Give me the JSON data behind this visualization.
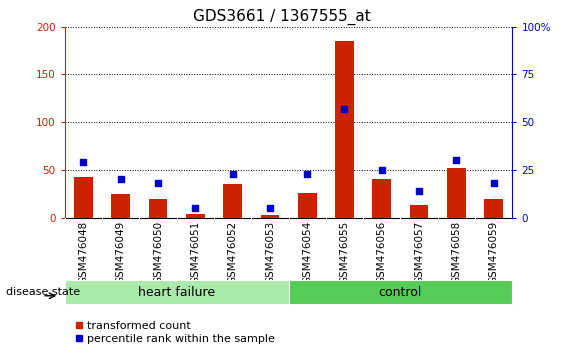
{
  "title": "GDS3661 / 1367555_at",
  "categories": [
    "GSM476048",
    "GSM476049",
    "GSM476050",
    "GSM476051",
    "GSM476052",
    "GSM476053",
    "GSM476054",
    "GSM476055",
    "GSM476056",
    "GSM476057",
    "GSM476058",
    "GSM476059"
  ],
  "transformed_count": [
    43,
    25,
    20,
    4,
    35,
    3,
    26,
    185,
    40,
    13,
    52,
    20
  ],
  "percentile_rank": [
    29,
    20,
    18,
    5,
    23,
    5,
    23,
    57,
    25,
    14,
    30,
    18
  ],
  "ylim_left": [
    0,
    200
  ],
  "ylim_right": [
    0,
    100
  ],
  "yticks_left": [
    0,
    50,
    100,
    150,
    200
  ],
  "yticks_right": [
    0,
    25,
    50,
    75,
    100
  ],
  "ytick_right_labels": [
    "0",
    "25",
    "50",
    "75",
    "100%"
  ],
  "bar_color": "#cc2200",
  "dot_color": "#0000cc",
  "hf_count": 6,
  "ctrl_count": 6,
  "heart_failure_color": "#aaeaaa",
  "control_color": "#55cc55",
  "group_label_heart_failure": "heart failure",
  "group_label_control": "control",
  "disease_state_label": "disease state",
  "legend_red_label": "transformed count",
  "legend_blue_label": "percentile rank within the sample",
  "tick_area_color": "#c8c8c8",
  "left_axis_color": "#cc2200",
  "right_axis_color": "#0000cc",
  "title_fontsize": 11,
  "tick_fontsize": 7.5,
  "label_fontsize": 9
}
